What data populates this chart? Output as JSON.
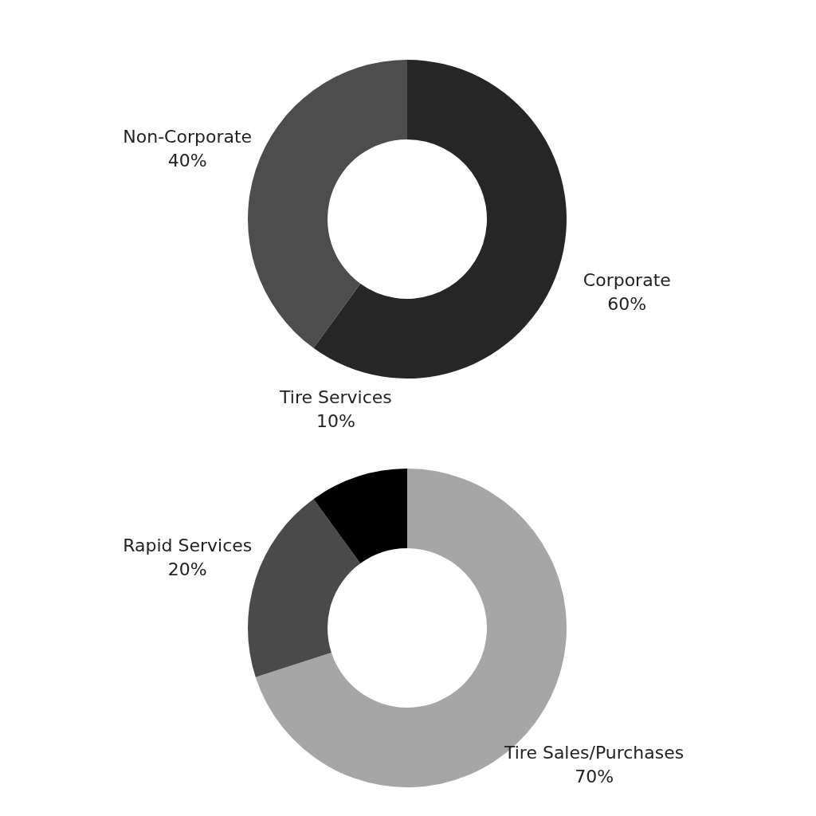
{
  "chart_data": [
    {
      "type": "donut",
      "categories": [
        "Corporate",
        "Non-Corporate"
      ],
      "values": [
        60,
        40
      ],
      "value_labels": [
        "60%",
        "40%"
      ],
      "colors": [
        "#262626",
        "#4d4d4d"
      ]
    },
    {
      "type": "donut",
      "categories": [
        "Tire Sales/Purchases",
        "Rapid Services",
        "Tire Services"
      ],
      "values": [
        70,
        20,
        10
      ],
      "value_labels": [
        "70%",
        "20%",
        "10%"
      ],
      "colors": [
        "#a6a6a6",
        "#4a4a4a",
        "#000000"
      ]
    }
  ]
}
